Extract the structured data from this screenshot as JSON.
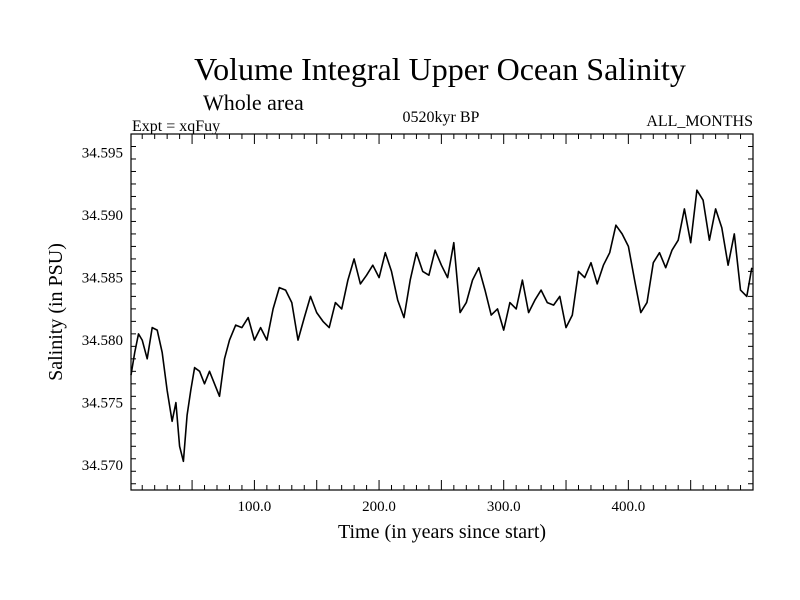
{
  "chart_data": {
    "type": "line",
    "title": "Volume Integral Upper Ocean Salinity",
    "subtitle": "Whole area",
    "experiment": "Expt = xqFuy",
    "period": "0520kyr BP",
    "months": "ALL_MONTHS",
    "xlabel": "Time (in years since start)",
    "ylabel": "Salinity (in PSU)",
    "xlim": [
      1,
      500
    ],
    "ylim": [
      34.568,
      34.5965
    ],
    "xticks": [
      100,
      200,
      300,
      400
    ],
    "xtick_labels": [
      "100.0",
      "200.0",
      "300.0",
      "400.0"
    ],
    "yticks": [
      34.57,
      34.575,
      34.58,
      34.585,
      34.59,
      34.595
    ],
    "ytick_labels": [
      "34.570",
      "34.575",
      "34.580",
      "34.585",
      "34.590",
      "34.595"
    ],
    "grid": false,
    "series": [
      {
        "name": "Salinity",
        "color": "#000000",
        "x": [
          1,
          4,
          7,
          10,
          14,
          18,
          22,
          26,
          30,
          34,
          37,
          40,
          43,
          46,
          49,
          52,
          56,
          60,
          64,
          68,
          72,
          76,
          80,
          85,
          90,
          95,
          100,
          105,
          110,
          115,
          120,
          125,
          130,
          135,
          140,
          145,
          150,
          155,
          160,
          165,
          170,
          175,
          180,
          185,
          190,
          195,
          200,
          205,
          210,
          215,
          220,
          225,
          230,
          235,
          240,
          245,
          250,
          255,
          260,
          265,
          270,
          275,
          280,
          285,
          290,
          295,
          300,
          305,
          310,
          315,
          320,
          325,
          330,
          335,
          340,
          345,
          350,
          355,
          360,
          365,
          370,
          375,
          380,
          385,
          390,
          395,
          400,
          405,
          410,
          415,
          420,
          425,
          430,
          435,
          440,
          445,
          450,
          455,
          460,
          465,
          470,
          475,
          480,
          485,
          490,
          495,
          499
        ],
        "values": [
          34.5772,
          34.579,
          34.5805,
          34.58,
          34.5785,
          34.581,
          34.5808,
          34.579,
          34.576,
          34.5735,
          34.575,
          34.5715,
          34.5703,
          34.574,
          34.576,
          34.5778,
          34.5775,
          34.5765,
          34.5775,
          34.5765,
          34.5755,
          34.5785,
          34.58,
          34.5812,
          34.581,
          34.5818,
          34.58,
          34.581,
          34.58,
          34.5825,
          34.5842,
          34.584,
          34.583,
          34.58,
          34.5818,
          34.5835,
          34.5822,
          34.5815,
          34.581,
          34.583,
          34.5825,
          34.5848,
          34.5865,
          34.5845,
          34.5852,
          34.586,
          34.585,
          34.587,
          34.5855,
          34.5832,
          34.5818,
          34.5848,
          34.587,
          34.5855,
          34.5852,
          34.5872,
          34.586,
          34.585,
          34.5878,
          34.5822,
          34.583,
          34.5848,
          34.5858,
          34.584,
          34.582,
          34.5825,
          34.5808,
          34.583,
          34.5825,
          34.5848,
          34.5822,
          34.5832,
          34.584,
          34.583,
          34.5828,
          34.5835,
          34.581,
          34.582,
          34.5855,
          34.585,
          34.5862,
          34.5845,
          34.586,
          34.587,
          34.5892,
          34.5885,
          34.5875,
          34.5848,
          34.5822,
          34.583,
          34.5862,
          34.587,
          34.5858,
          34.5872,
          34.588,
          34.5905,
          34.5878,
          34.592,
          34.5912,
          34.588,
          34.5905,
          34.589,
          34.586,
          34.5885,
          34.584,
          34.5835,
          34.5858
        ]
      }
    ]
  }
}
